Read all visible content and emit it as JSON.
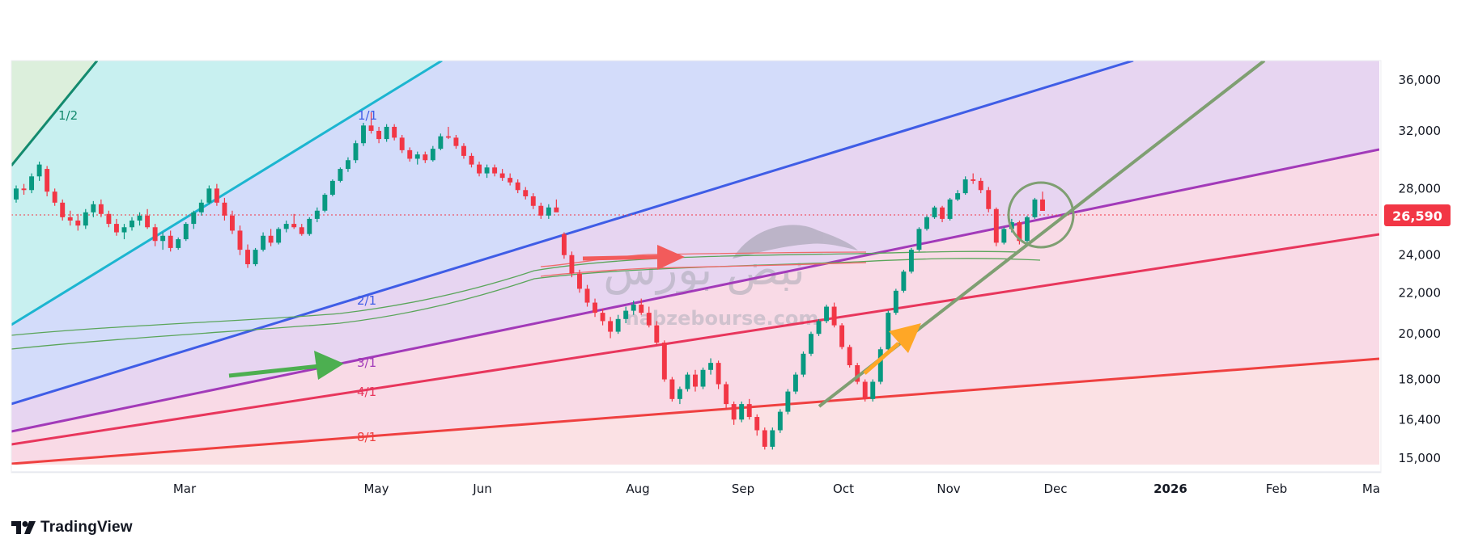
{
  "chart_data": {
    "type": "candlestick",
    "title": "",
    "xlabel": "",
    "ylabel": "",
    "ylim": [
      15000,
      37000
    ],
    "y_scale": "log",
    "y_ticks": [
      "36,000",
      "32,000",
      "28,000",
      "24,000",
      "22,000",
      "20,000",
      "18,000",
      "16,400",
      "15,000"
    ],
    "y_tick_values": [
      36000,
      32000,
      28000,
      24000,
      22000,
      20000,
      18000,
      16400,
      15000
    ],
    "x_ticks": [
      "Mar",
      "May",
      "Jun",
      "Aug",
      "Sep",
      "Oct",
      "Nov",
      "Dec",
      "2026",
      "Feb",
      "Ma"
    ],
    "last_price": 26590,
    "last_price_label": "26,590",
    "gann_fan_labels": [
      "1/2",
      "1/1",
      "2/1",
      "3/1",
      "4/1",
      "8/1"
    ],
    "watermark": {
      "text_fa": "نبض بورس",
      "text_en": "nabzebourse.com"
    },
    "colors": {
      "up": "#089981",
      "down": "#f23645",
      "last_price": "#f23645",
      "fan_1_2": "#138a6e",
      "fan_1_1": "#1cb5d0",
      "fan_2_1": "#3f5de6",
      "fan_3_1": "#a23ab9",
      "fan_4_1": "#e8365c",
      "fan_8_1": "#ef4040",
      "trend_line": "#7f9f72",
      "arrow_green": "#4caf50",
      "arrow_red": "#f25b5b",
      "arrow_orange": "#ffa726"
    },
    "bars": [
      [
        27300,
        28200,
        27100,
        28000
      ],
      [
        28000,
        28300,
        27600,
        27900
      ],
      [
        27900,
        29000,
        27700,
        28800
      ],
      [
        28800,
        29800,
        28500,
        29600
      ],
      [
        29300,
        29500,
        27500,
        27800
      ],
      [
        27800,
        28000,
        26900,
        27100
      ],
      [
        27100,
        27300,
        26000,
        26200
      ],
      [
        26200,
        26600,
        25700,
        26000
      ],
      [
        26000,
        26400,
        25400,
        25700
      ],
      [
        25700,
        26700,
        25500,
        26500
      ],
      [
        26500,
        27200,
        26200,
        27000
      ],
      [
        27000,
        27300,
        26200,
        26400
      ],
      [
        26400,
        26600,
        25600,
        25800
      ],
      [
        25800,
        26100,
        25100,
        25300
      ],
      [
        25300,
        25800,
        24900,
        25600
      ],
      [
        25600,
        26200,
        25400,
        26000
      ],
      [
        26000,
        26500,
        25700,
        26300
      ],
      [
        26300,
        26700,
        25500,
        25600
      ],
      [
        25600,
        25800,
        24500,
        24800
      ],
      [
        24800,
        25300,
        24300,
        25100
      ],
      [
        25100,
        25400,
        24200,
        24400
      ],
      [
        24400,
        25000,
        24300,
        24900
      ],
      [
        24900,
        25900,
        24800,
        25800
      ],
      [
        25800,
        26600,
        25500,
        26500
      ],
      [
        26500,
        27300,
        26300,
        27100
      ],
      [
        27100,
        28200,
        27000,
        28000
      ],
      [
        28000,
        28300,
        26900,
        27100
      ],
      [
        27100,
        27400,
        26000,
        26300
      ],
      [
        26300,
        26600,
        25200,
        25400
      ],
      [
        25400,
        25700,
        24000,
        24300
      ],
      [
        24300,
        24600,
        23300,
        23500
      ],
      [
        23500,
        24400,
        23400,
        24300
      ],
      [
        24300,
        25300,
        24200,
        25100
      ],
      [
        25100,
        25500,
        24500,
        24700
      ],
      [
        24700,
        25600,
        24600,
        25500
      ],
      [
        25500,
        26000,
        25300,
        25800
      ],
      [
        25800,
        26400,
        25500,
        25600
      ],
      [
        25600,
        25800,
        25100,
        25200
      ],
      [
        25200,
        26200,
        25100,
        26100
      ],
      [
        26100,
        26800,
        25900,
        26600
      ],
      [
        26600,
        27700,
        26500,
        27600
      ],
      [
        27600,
        28600,
        27500,
        28500
      ],
      [
        28500,
        29400,
        28400,
        29300
      ],
      [
        29300,
        30100,
        29100,
        29900
      ],
      [
        29900,
        31300,
        29700,
        31100
      ],
      [
        31100,
        32600,
        30900,
        32400
      ],
      [
        32400,
        33400,
        31800,
        32000
      ],
      [
        32000,
        32300,
        31100,
        31400
      ],
      [
        31400,
        32500,
        31200,
        32300
      ],
      [
        32300,
        32500,
        31300,
        31500
      ],
      [
        31500,
        31700,
        30400,
        30600
      ],
      [
        30600,
        30800,
        29800,
        30000
      ],
      [
        30000,
        30500,
        29600,
        30300
      ],
      [
        30300,
        30500,
        29700,
        29900
      ],
      [
        29900,
        30900,
        29800,
        30700
      ],
      [
        30700,
        31800,
        30600,
        31600
      ],
      [
        31600,
        32300,
        31400,
        31500
      ],
      [
        31500,
        31700,
        30700,
        30900
      ],
      [
        30900,
        31100,
        30000,
        30200
      ],
      [
        30200,
        30400,
        29400,
        29600
      ],
      [
        29600,
        29800,
        28800,
        29000
      ],
      [
        29000,
        29600,
        28700,
        29400
      ],
      [
        29400,
        29600,
        28800,
        29000
      ],
      [
        29000,
        29300,
        28500,
        28700
      ],
      [
        28700,
        29000,
        28200,
        28400
      ],
      [
        28400,
        28600,
        27700,
        27900
      ],
      [
        27900,
        28100,
        27300,
        27500
      ],
      [
        27500,
        27700,
        26700,
        26900
      ],
      [
        26900,
        27100,
        26100,
        26300
      ],
      [
        26300,
        27000,
        26100,
        26800
      ],
      [
        26800,
        27300,
        26600,
        26500
      ],
      [
        25200,
        25300,
        23800,
        24000
      ],
      [
        24000,
        24200,
        22800,
        23000
      ],
      [
        23000,
        23200,
        22000,
        22200
      ],
      [
        22200,
        22400,
        21300,
        21500
      ],
      [
        21500,
        21700,
        20800,
        21000
      ],
      [
        21000,
        21200,
        20400,
        20600
      ],
      [
        20600,
        20800,
        19800,
        20100
      ],
      [
        20100,
        20900,
        20000,
        20700
      ],
      [
        20700,
        21300,
        20500,
        21100
      ],
      [
        21100,
        21600,
        20900,
        21400
      ],
      [
        21400,
        21700,
        20900,
        21000
      ],
      [
        21000,
        21300,
        20300,
        20400
      ],
      [
        20400,
        20600,
        19500,
        19600
      ],
      [
        19600,
        19700,
        17900,
        18000
      ],
      [
        18000,
        18100,
        17100,
        17200
      ],
      [
        17200,
        17700,
        17000,
        17600
      ],
      [
        17600,
        18300,
        17500,
        18200
      ],
      [
        18200,
        18400,
        17500,
        17700
      ],
      [
        17700,
        18500,
        17600,
        18400
      ],
      [
        18400,
        18900,
        18200,
        18700
      ],
      [
        18700,
        18800,
        17600,
        17800
      ],
      [
        17800,
        17900,
        16800,
        17000
      ],
      [
        17000,
        17100,
        16200,
        16400
      ],
      [
        16400,
        17100,
        16300,
        17000
      ],
      [
        17000,
        17200,
        16400,
        16500
      ],
      [
        16500,
        16600,
        15800,
        16000
      ],
      [
        16000,
        16100,
        15300,
        15400
      ],
      [
        15400,
        16100,
        15300,
        16000
      ],
      [
        16000,
        16800,
        15900,
        16700
      ],
      [
        16700,
        17600,
        16600,
        17500
      ],
      [
        17500,
        18300,
        17400,
        18200
      ],
      [
        18200,
        19200,
        18100,
        19100
      ],
      [
        19100,
        20100,
        19000,
        20000
      ],
      [
        20000,
        20700,
        19900,
        20600
      ],
      [
        20600,
        21400,
        20500,
        21300
      ],
      [
        21300,
        21500,
        20300,
        20400
      ],
      [
        20400,
        20500,
        19300,
        19400
      ],
      [
        19400,
        19500,
        18500,
        18600
      ],
      [
        18600,
        18700,
        17800,
        17900
      ],
      [
        17900,
        18000,
        17100,
        17200
      ],
      [
        17200,
        18000,
        17100,
        17900
      ],
      [
        17900,
        19400,
        17800,
        19300
      ],
      [
        19300,
        21100,
        19200,
        21000
      ],
      [
        21000,
        22200,
        20900,
        22100
      ],
      [
        22100,
        23200,
        22000,
        23100
      ],
      [
        23100,
        24400,
        23000,
        24300
      ],
      [
        24300,
        25600,
        24200,
        25500
      ],
      [
        25500,
        26300,
        25400,
        26200
      ],
      [
        26200,
        26900,
        26100,
        26800
      ],
      [
        26800,
        26900,
        25900,
        26100
      ],
      [
        26100,
        27400,
        26000,
        27300
      ],
      [
        27300,
        27900,
        27200,
        27700
      ],
      [
        27700,
        28800,
        27600,
        28600
      ],
      [
        28600,
        29000,
        28300,
        28500
      ],
      [
        28500,
        28700,
        27700,
        27900
      ],
      [
        27900,
        28100,
        26500,
        26700
      ],
      [
        26700,
        26800,
        24500,
        24700
      ],
      [
        24700,
        25600,
        24600,
        25500
      ],
      [
        25500,
        26100,
        25300,
        25900
      ],
      [
        25900,
        26000,
        24600,
        24800
      ],
      [
        24800,
        26300,
        24700,
        26200
      ],
      [
        26200,
        27400,
        26100,
        27300
      ],
      [
        27300,
        27800,
        26600,
        26590
      ]
    ]
  }
}
